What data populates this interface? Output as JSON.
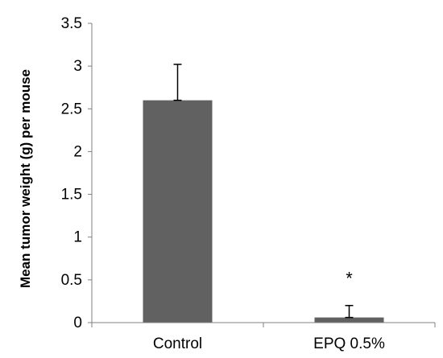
{
  "chart_data": {
    "type": "bar",
    "title": "",
    "xlabel": "",
    "ylabel": "Mean tumor weight (g) per mouse",
    "categories": [
      "Control",
      "EPQ 0.5%"
    ],
    "values": [
      2.6,
      0.06
    ],
    "error_upper": [
      0.42,
      0.14
    ],
    "annotations": [
      "",
      "*"
    ],
    "ylim": [
      0,
      3.5
    ],
    "yticks": [
      "0",
      "0.5",
      "1",
      "1.5",
      "2",
      "2.5",
      "3",
      "3.5"
    ],
    "grid": false,
    "legend": "none",
    "bar_color": "#616161"
  }
}
